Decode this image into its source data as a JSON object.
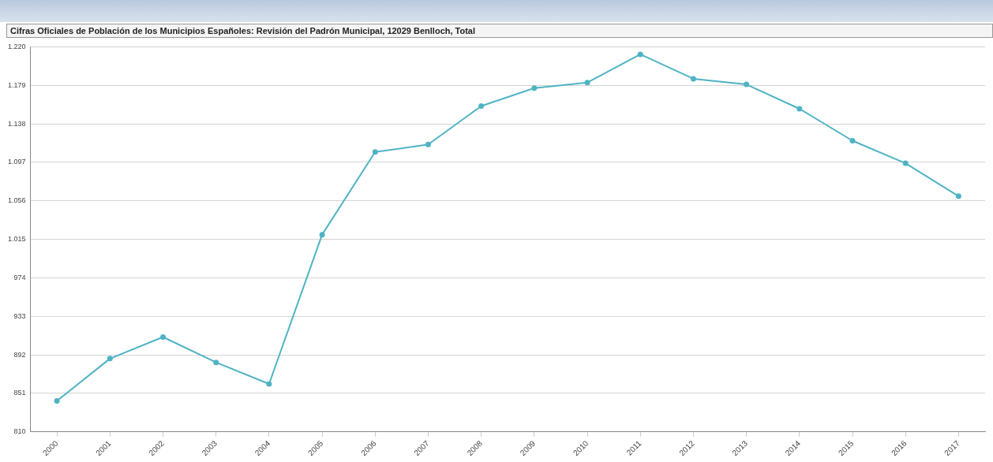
{
  "chart_data": {
    "type": "line",
    "title": "Cifras Oficiales de Población de los Municipios Españoles: Revisión del Padrón Municipal, 12029 Benlloch, Total",
    "categories": [
      "2000",
      "2001",
      "2002",
      "2003",
      "2004",
      "2005",
      "2006",
      "2007",
      "2008",
      "2009",
      "2010",
      "2011",
      "2012",
      "2013",
      "2014",
      "2015",
      "2016",
      "2017"
    ],
    "series": [
      {
        "color": "#4fb3c4",
        "values": [
          843,
          888,
          911,
          884,
          861,
          1020,
          1108,
          1116,
          1157,
          1176,
          1182,
          1212,
          1186,
          1180,
          1154,
          1120,
          1096,
          1061
        ]
      }
    ],
    "ylim": [
      810,
      1220
    ],
    "yticks": [
      810,
      851,
      892,
      933,
      974,
      {
        "value": 1015,
        "label": "1.015"
      },
      {
        "value": 1056,
        "label": "1.056"
      },
      {
        "value": 1097,
        "label": "1.097"
      },
      {
        "value": 1138,
        "label": "1.138"
      },
      {
        "value": 1179,
        "label": "1.179"
      },
      {
        "value": 1220,
        "label": "1.220"
      }
    ],
    "grid": "y",
    "legend": false,
    "marker": "circle",
    "line_style": "solid"
  }
}
